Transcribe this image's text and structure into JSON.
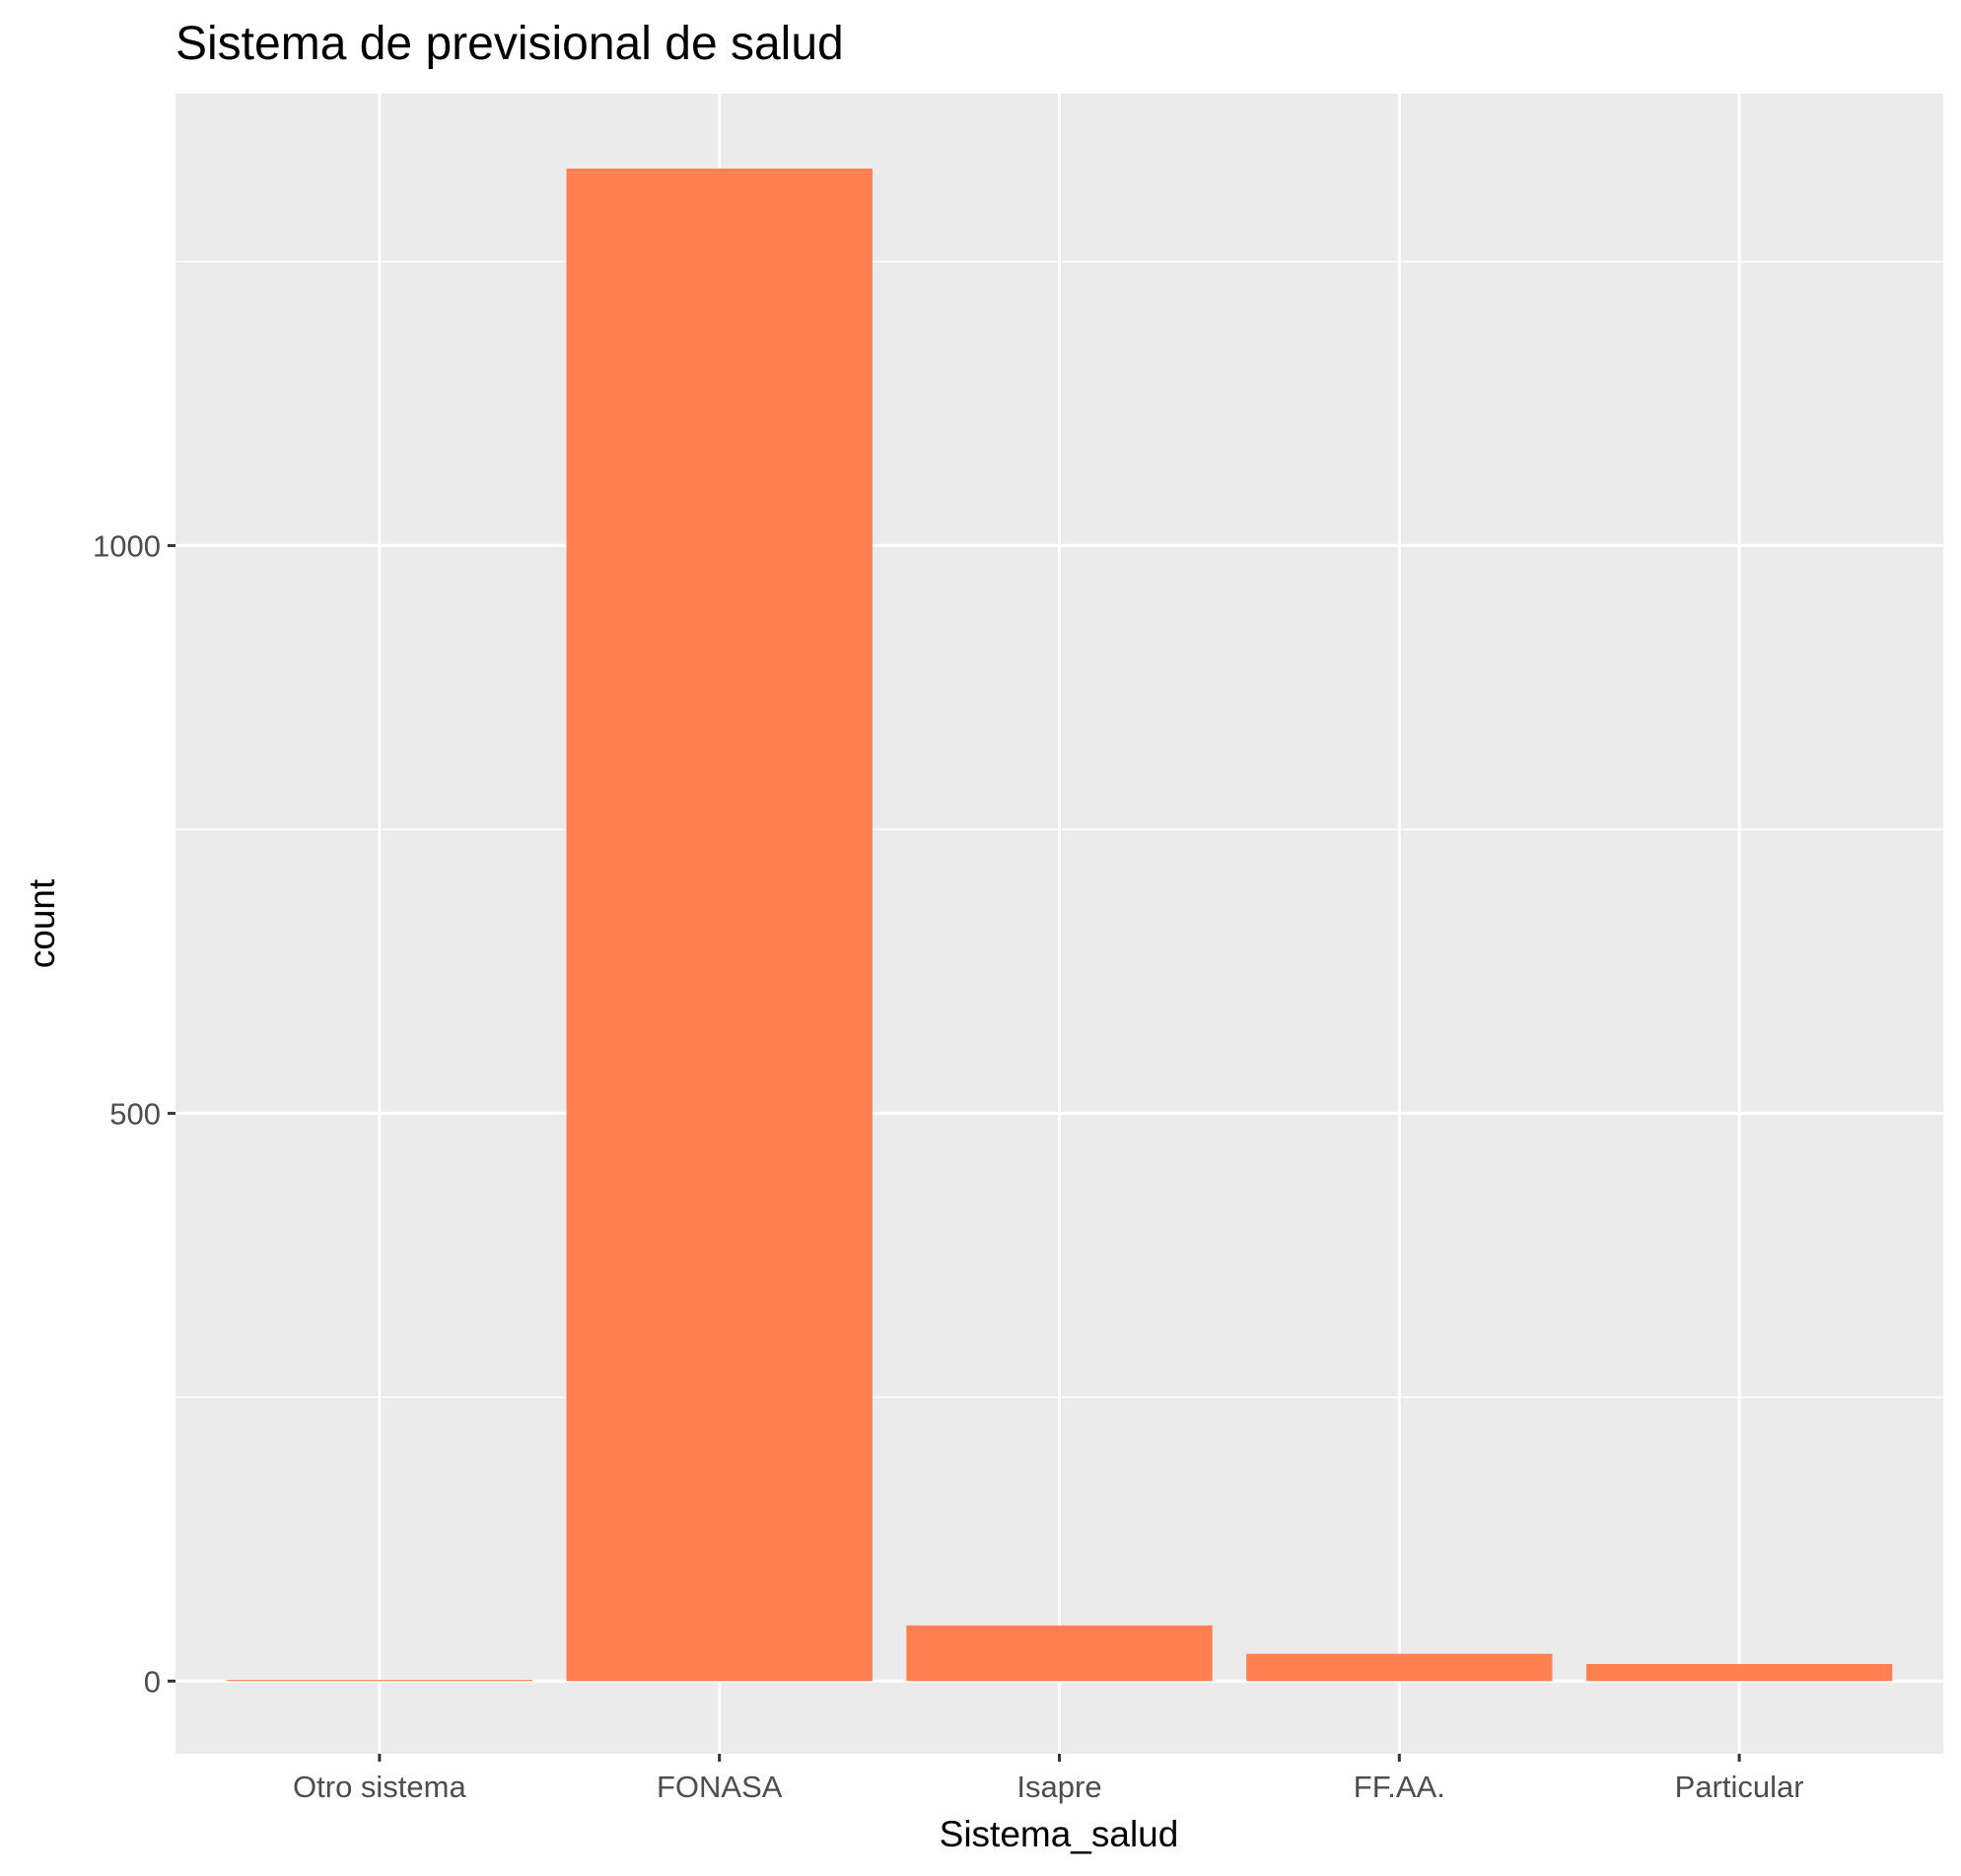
{
  "chart_data": {
    "type": "bar",
    "title": "Sistema de previsional de salud",
    "xlabel": "Sistema_salud",
    "ylabel": "count",
    "categories": [
      "Otro sistema",
      "FONASA",
      "Isapre",
      "FF.AA.",
      "Particular"
    ],
    "values": [
      1,
      1332,
      49,
      24,
      15
    ],
    "ylim": [
      -64,
      1398
    ],
    "y_ticks": [
      0,
      500,
      1000
    ],
    "y_tick_labels": [
      "0",
      "500",
      "1000"
    ],
    "grid": true,
    "legend": "none",
    "colors": {
      "bar": "#FF7F50",
      "panel_background": "#EBEBEB",
      "grid_major": "#FFFFFF",
      "grid_minor": "#FFFFFF",
      "tick": "#333333",
      "tick_label": "#4D4D4D",
      "text": "#000000"
    }
  }
}
